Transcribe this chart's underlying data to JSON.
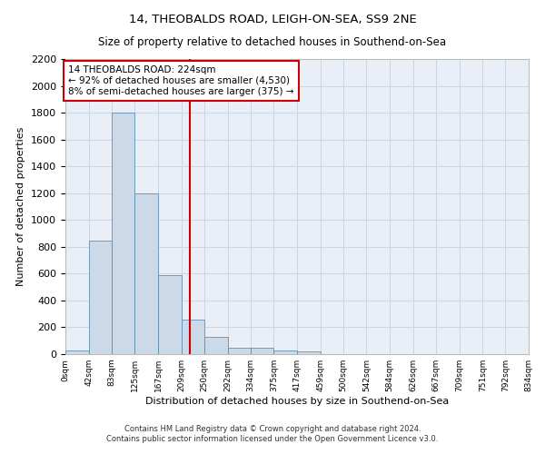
{
  "title": "14, THEOBALDS ROAD, LEIGH-ON-SEA, SS9 2NE",
  "subtitle": "Size of property relative to detached houses in Southend-on-Sea",
  "xlabel": "Distribution of detached houses by size in Southend-on-Sea",
  "ylabel": "Number of detached properties",
  "footnote1": "Contains HM Land Registry data © Crown copyright and database right 2024.",
  "footnote2": "Contains public sector information licensed under the Open Government Licence v3.0.",
  "bin_edges": [
    0,
    42,
    83,
    125,
    167,
    209,
    250,
    292,
    334,
    375,
    417,
    459,
    500,
    542,
    584,
    626,
    667,
    709,
    751,
    792,
    834
  ],
  "bar_heights": [
    25,
    845,
    1800,
    1200,
    590,
    260,
    130,
    50,
    45,
    30,
    20,
    0,
    0,
    0,
    0,
    0,
    0,
    0,
    0,
    0
  ],
  "bar_color": "#ccd9e8",
  "bar_edge_color": "#6090b0",
  "vline_x": 224,
  "vline_color": "#cc0000",
  "annotation_text": "14 THEOBALDS ROAD: 224sqm\n← 92% of detached houses are smaller (4,530)\n8% of semi-detached houses are larger (375) →",
  "annotation_box_color": "#cc0000",
  "ylim": [
    0,
    2200
  ],
  "yticks": [
    0,
    200,
    400,
    600,
    800,
    1000,
    1200,
    1400,
    1600,
    1800,
    2000,
    2200
  ],
  "tick_labels": [
    "0sqm",
    "42sqm",
    "83sqm",
    "125sqm",
    "167sqm",
    "209sqm",
    "250sqm",
    "292sqm",
    "334sqm",
    "375sqm",
    "417sqm",
    "459sqm",
    "500sqm",
    "542sqm",
    "584sqm",
    "626sqm",
    "667sqm",
    "709sqm",
    "751sqm",
    "792sqm",
    "834sqm"
  ],
  "grid_color": "#ccd5e5",
  "bg_color": "#eaeff7",
  "title_fontsize": 9.5,
  "subtitle_fontsize": 8.5,
  "ylabel_fontsize": 8,
  "xlabel_fontsize": 8,
  "ytick_fontsize": 8,
  "xtick_fontsize": 6.5,
  "annot_fontsize": 7.5,
  "footnote_fontsize": 6
}
